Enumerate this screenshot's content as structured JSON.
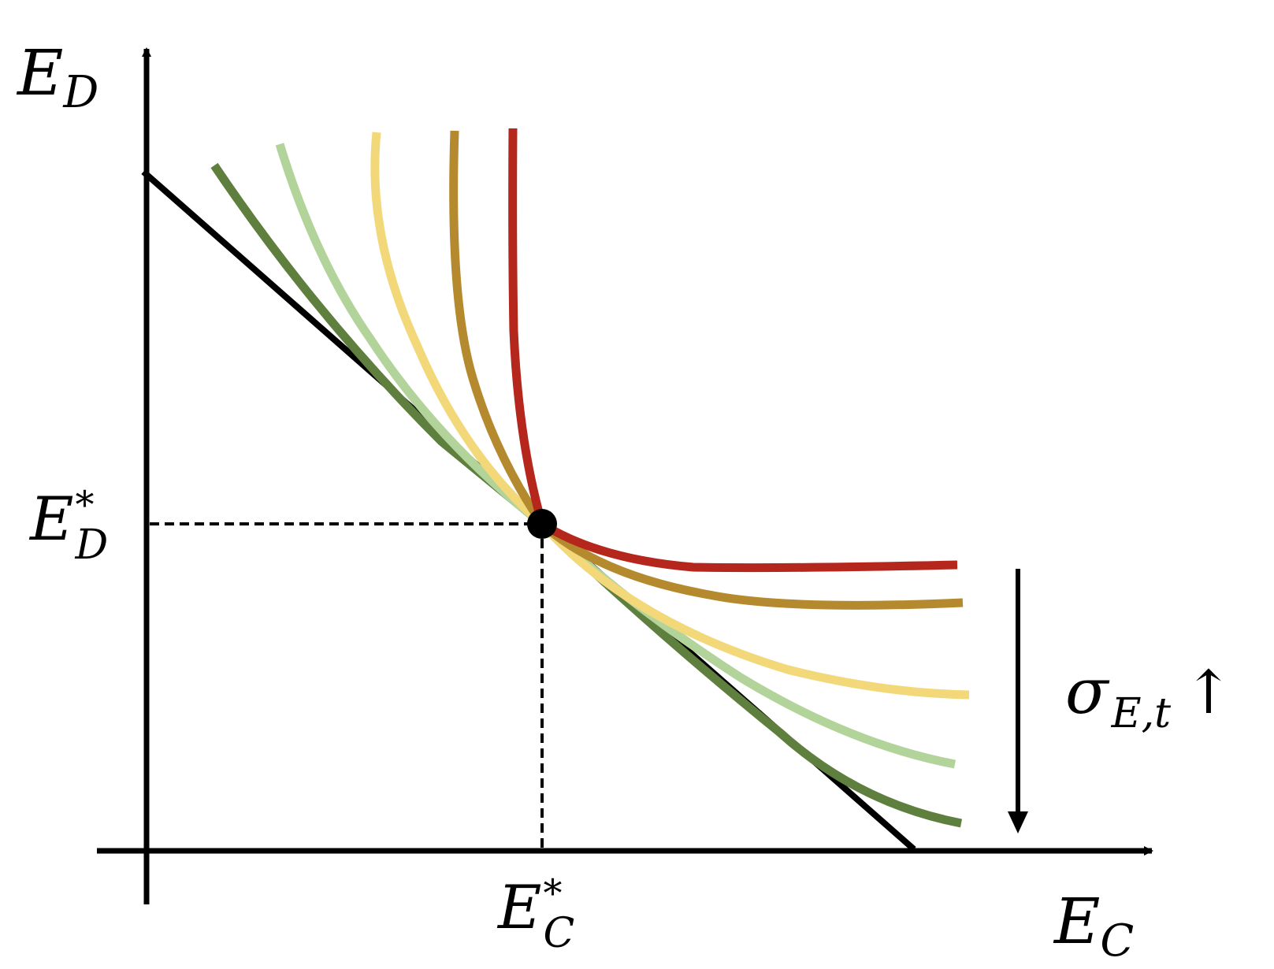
{
  "figure": {
    "type": "indifference-curves-diagram",
    "axes": {
      "x_label": {
        "base": "E",
        "sub": "C"
      },
      "y_label": {
        "base": "E",
        "sub": "D"
      }
    },
    "optimum": {
      "x_label": {
        "base": "E",
        "sup": "*",
        "sub": "C"
      },
      "y_label": {
        "base": "E",
        "sup": "*",
        "sub": "D"
      }
    },
    "parameter_label": {
      "base": "σ",
      "sub": "E,t",
      "arrow": "↑"
    },
    "budget_line": {
      "color": "#000000"
    },
    "curves": [
      {
        "name": "red",
        "color": "#b5261c"
      },
      {
        "name": "dark-gold",
        "color": "#b58a2e"
      },
      {
        "name": "yellow",
        "color": "#f3d87a"
      },
      {
        "name": "light-green",
        "color": "#b2d39a"
      },
      {
        "name": "dark-green",
        "color": "#5e7f3e"
      }
    ],
    "direction_arrow": "down"
  }
}
